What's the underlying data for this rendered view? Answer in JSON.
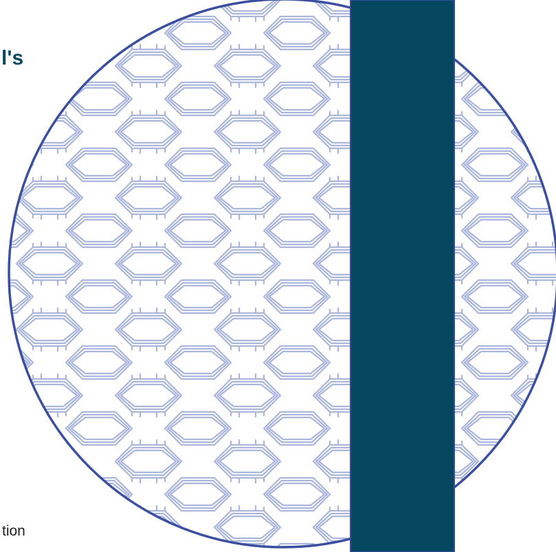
{
  "colors": {
    "background": "#ffffff",
    "circle_outline": "#3b4fa0",
    "pattern_stroke": "#aab5dc",
    "vertical_bar": "#05475f",
    "heading_text": "#0d4662",
    "body_text": "#202020"
  },
  "text": {
    "top_fragment": "l's",
    "bottom_fragment": "tion"
  },
  "graphic": {
    "pattern": "interlocking-hexagon-lattice",
    "shape": "circle"
  }
}
